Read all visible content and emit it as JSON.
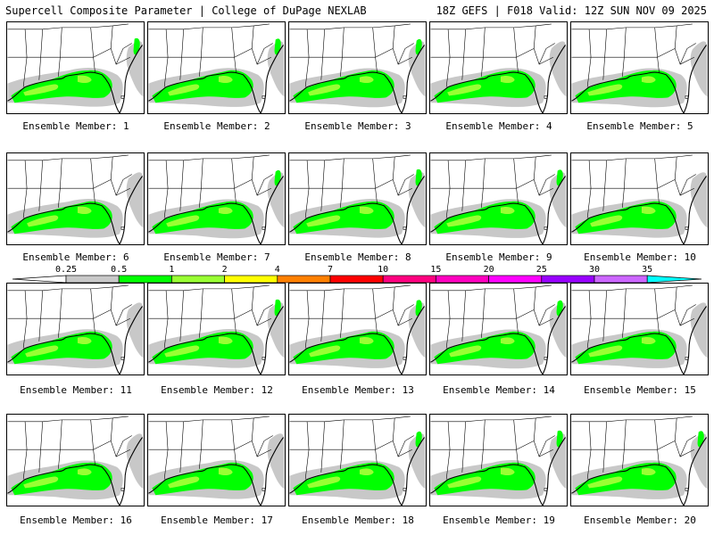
{
  "header": {
    "left_title": "Supercell Composite Parameter | College of DuPage NEXLAB",
    "right_title": "18Z GEFS | F018 Valid: 12Z SUN NOV 09 2025"
  },
  "colors": {
    "lt_gray": "#c8c8c8",
    "green": "#00ff00",
    "lt_green": "#99ff33",
    "yellow": "#ffff00",
    "orange": "#ff8000",
    "red": "#ff0000",
    "deep_pink": "#ff0080",
    "pink": "#ff00c0",
    "magenta": "#ff00ff",
    "purple": "#9900ff",
    "lavender": "#cc66ff",
    "cyan": "#00ffff"
  },
  "scale": {
    "labels": [
      "0.25",
      "0.5",
      "1",
      "2",
      "4",
      "7",
      "10",
      "15",
      "20",
      "25",
      "30",
      "35"
    ],
    "colors": [
      "#c8c8c8",
      "#00ff00",
      "#99ff33",
      "#ffff00",
      "#ff8000",
      "#ff0000",
      "#ff0080",
      "#ff00c0",
      "#ff00ff",
      "#9900ff",
      "#cc66ff",
      "#00ffff"
    ]
  },
  "members": [
    {
      "label": "Ensemble Member: 1"
    },
    {
      "label": "Ensemble Member: 2"
    },
    {
      "label": "Ensemble Member: 3"
    },
    {
      "label": "Ensemble Member: 4"
    },
    {
      "label": "Ensemble Member: 5"
    },
    {
      "label": "Ensemble Member: 6"
    },
    {
      "label": "Ensemble Member: 7"
    },
    {
      "label": "Ensemble Member: 8"
    },
    {
      "label": "Ensemble Member: 9"
    },
    {
      "label": "Ensemble Member: 10"
    },
    {
      "label": "Ensemble Member: 11"
    },
    {
      "label": "Ensemble Member: 12"
    },
    {
      "label": "Ensemble Member: 13"
    },
    {
      "label": "Ensemble Member: 14"
    },
    {
      "label": "Ensemble Member: 15"
    },
    {
      "label": "Ensemble Member: 16"
    },
    {
      "label": "Ensemble Member: 17"
    },
    {
      "label": "Ensemble Member: 18"
    },
    {
      "label": "Ensemble Member: 19"
    },
    {
      "label": "Ensemble Member: 20"
    }
  ]
}
